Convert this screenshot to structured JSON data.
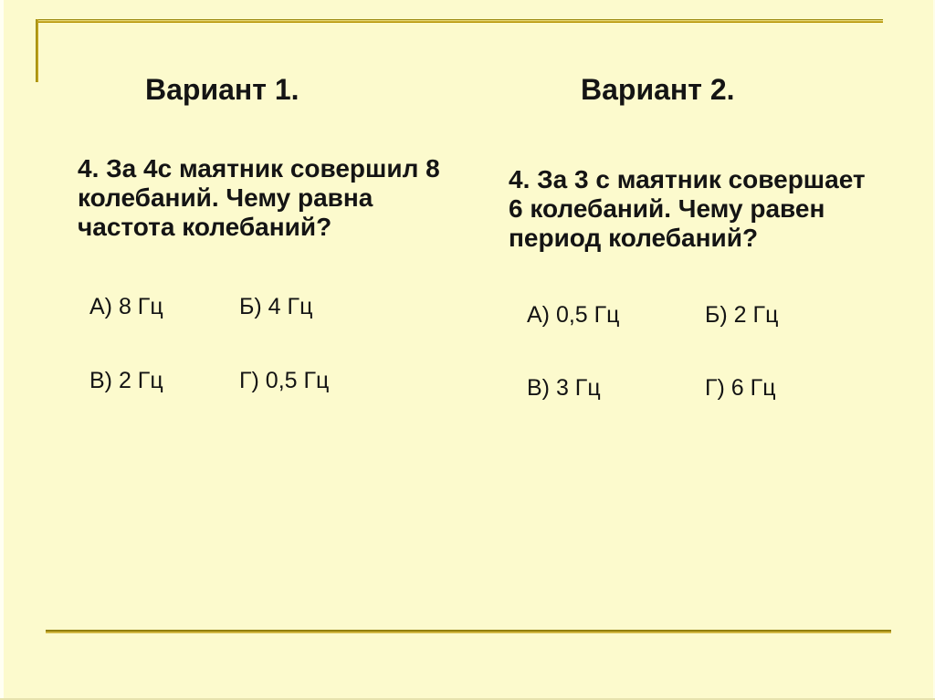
{
  "slide": {
    "background_color": "#FCFACD",
    "frame_line_color": "#B8860B",
    "text_color": "#141414"
  },
  "variant1": {
    "header": "Вариант 1.",
    "question_lines": [
      "4. За 4с маятник совершил 8",
      "колебаний. Чему равна",
      "частота колебаний?"
    ],
    "answers": {
      "a": "А) 8 Гц",
      "b": "Б) 4 Гц",
      "v": "В) 2 Гц",
      "g": "Г) 0,5 Гц"
    }
  },
  "variant2": {
    "header": "Вариант 2.",
    "question_lines": [
      "4. За 3 с маятник совершает",
      "6 колебаний. Чему равен",
      "период колебаний?"
    ],
    "answers": {
      "a": "А) 0,5 Гц",
      "b": "Б) 2 Гц",
      "v": "В) 3 Гц",
      "g": "Г) 6 Гц"
    }
  }
}
